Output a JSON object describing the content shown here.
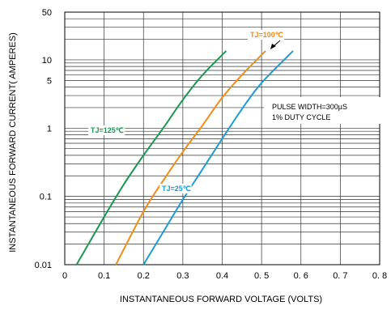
{
  "chart_data": {
    "type": "line",
    "xlabel": "INSTANTANEOUS FORWARD VOLTAGE (VOLTS)",
    "ylabel": "INSTANTANEOUS FORWARD CURRENT( AMPERES)",
    "xlim": [
      0,
      0.8
    ],
    "ylim": [
      0.01,
      50
    ],
    "yscale": "log",
    "grid": true,
    "x_ticks": [
      {
        "value": 0,
        "label": "0"
      },
      {
        "value": 0.1,
        "label": "0.1"
      },
      {
        "value": 0.2,
        "label": "0.2"
      },
      {
        "value": 0.3,
        "label": "0.3"
      },
      {
        "value": 0.4,
        "label": "0.4"
      },
      {
        "value": 0.5,
        "label": "0. 5"
      },
      {
        "value": 0.6,
        "label": "0. 6"
      },
      {
        "value": 0.7,
        "label": "0. 7"
      },
      {
        "value": 0.8,
        "label": "0. 8"
      }
    ],
    "y_ticks": [
      {
        "value": 0.01,
        "label": "0.01"
      },
      {
        "value": 0.1,
        "label": "0.1"
      },
      {
        "value": 1,
        "label": "1"
      },
      {
        "value": 5,
        "label": "5"
      },
      {
        "value": 10,
        "label": "10"
      },
      {
        "value": 50,
        "label": "50"
      }
    ],
    "series": [
      {
        "name": "TJ=125℃",
        "color": "#1a9850",
        "x": [
          0.03,
          0.1,
          0.15,
          0.2,
          0.25,
          0.3,
          0.35,
          0.41
        ],
        "y": [
          0.01,
          0.05,
          0.15,
          0.4,
          1.0,
          2.6,
          6.0,
          13.5
        ]
      },
      {
        "name": "TJ=100℃",
        "color": "#f08c1a",
        "x": [
          0.13,
          0.2,
          0.25,
          0.3,
          0.35,
          0.4,
          0.45,
          0.51
        ],
        "y": [
          0.01,
          0.06,
          0.17,
          0.45,
          1.1,
          2.8,
          6.0,
          13.5
        ]
      },
      {
        "name": "TJ=25℃",
        "color": "#1e9ad6",
        "x": [
          0.2,
          0.25,
          0.3,
          0.35,
          0.4,
          0.45,
          0.5,
          0.58
        ],
        "y": [
          0.01,
          0.03,
          0.09,
          0.25,
          0.7,
          1.9,
          4.6,
          13.5
        ]
      }
    ],
    "annotations": [
      "PULSE WIDTH=300µS",
      "1% DUTY CYCLE"
    ]
  }
}
